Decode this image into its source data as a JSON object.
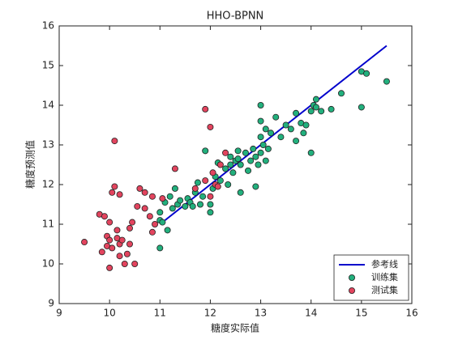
{
  "chart_data": {
    "type": "scatter",
    "title": "HHO-BPNN",
    "x_label": "糖度实际值",
    "y_label": "糖度预测值",
    "xlim": [
      9,
      16
    ],
    "ylim": [
      9,
      16
    ],
    "xticks": [
      9,
      10,
      11,
      12,
      13,
      14,
      15,
      16
    ],
    "yticks": [
      9,
      10,
      11,
      12,
      13,
      14,
      15,
      16
    ],
    "legend": "lower right",
    "series": [
      {
        "name": "参考线",
        "style": "line",
        "color": "#0000cc",
        "x": [
          11.1,
          15.5
        ],
        "values": [
          11.1,
          15.5
        ]
      },
      {
        "name": "训练集",
        "style": "marker",
        "color": "#22b07d",
        "x": [
          11.0,
          11.0,
          11.0,
          11.05,
          11.1,
          11.15,
          11.2,
          11.25,
          11.3,
          11.35,
          11.4,
          11.5,
          11.55,
          11.6,
          11.7,
          11.75,
          11.8,
          11.85,
          11.9,
          12.0,
          12.0,
          12.05,
          12.1,
          12.15,
          12.2,
          12.3,
          12.35,
          12.4,
          12.45,
          12.5,
          12.55,
          12.6,
          12.6,
          12.7,
          12.75,
          12.8,
          12.85,
          12.9,
          12.9,
          12.95,
          13.0,
          13.0,
          13.0,
          13.0,
          13.05,
          13.1,
          13.1,
          13.15,
          13.2,
          13.3,
          13.4,
          13.5,
          13.6,
          13.7,
          13.7,
          13.8,
          13.85,
          13.9,
          14.0,
          14.0,
          14.05,
          14.1,
          14.1,
          14.2,
          14.4,
          14.6,
          15.0,
          15.0,
          15.1,
          15.5,
          12.4,
          12.55,
          11.65
        ],
        "values": [
          10.4,
          11.1,
          11.3,
          11.05,
          11.55,
          10.85,
          11.7,
          11.4,
          11.9,
          11.5,
          11.6,
          11.45,
          11.65,
          11.55,
          11.8,
          12.05,
          11.5,
          11.7,
          12.85,
          11.3,
          11.5,
          11.9,
          12.2,
          12.55,
          12.1,
          12.4,
          12.0,
          12.7,
          12.3,
          12.6,
          12.85,
          12.5,
          11.8,
          12.8,
          12.35,
          12.6,
          12.9,
          11.95,
          12.7,
          12.5,
          14.0,
          13.6,
          13.2,
          12.8,
          13.0,
          12.6,
          13.4,
          12.9,
          13.3,
          13.7,
          13.2,
          13.5,
          13.4,
          13.1,
          13.8,
          13.55,
          13.3,
          13.5,
          12.8,
          13.85,
          14.0,
          14.15,
          13.95,
          13.85,
          13.9,
          14.3,
          14.85,
          13.95,
          14.8,
          14.6,
          12.5,
          12.65,
          11.45
        ]
      },
      {
        "name": "测试集",
        "style": "marker",
        "color": "#e2445e",
        "x": [
          9.5,
          9.8,
          9.85,
          9.9,
          9.95,
          9.95,
          10.0,
          10.0,
          10.0,
          10.05,
          10.05,
          10.1,
          10.1,
          10.15,
          10.15,
          10.2,
          10.2,
          10.2,
          10.25,
          10.3,
          10.35,
          10.4,
          10.4,
          10.45,
          10.5,
          10.55,
          10.6,
          10.7,
          10.7,
          10.8,
          10.85,
          10.85,
          10.9,
          11.05,
          11.3,
          11.9,
          12.0,
          12.05,
          12.1,
          12.2,
          12.3,
          11.9,
          12.0,
          12.15,
          11.7
        ],
        "values": [
          10.55,
          11.25,
          10.3,
          11.2,
          10.7,
          10.45,
          9.9,
          10.6,
          11.05,
          10.4,
          11.8,
          11.95,
          13.1,
          10.85,
          10.65,
          10.5,
          10.2,
          11.75,
          10.6,
          10.0,
          10.25,
          10.5,
          10.9,
          11.05,
          10.0,
          11.45,
          11.9,
          11.8,
          11.4,
          11.2,
          10.8,
          11.7,
          11.0,
          11.65,
          12.4,
          13.9,
          13.45,
          12.3,
          12.0,
          12.5,
          12.8,
          12.1,
          11.7,
          11.95,
          11.9
        ]
      }
    ]
  }
}
